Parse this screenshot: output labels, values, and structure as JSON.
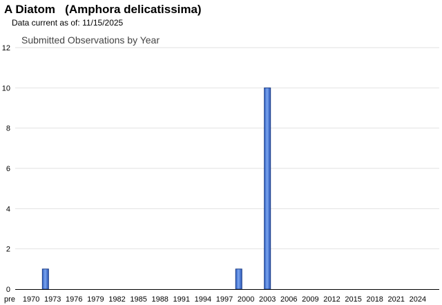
{
  "header": {
    "species_title": "A Diatom   (Amphora delicatissima)",
    "data_current_label": "Data current as of:",
    "data_current_date": "11/15/2025"
  },
  "colors": {
    "bar_fill": "#4a7bd8",
    "bar_stroke": "#1f3f86",
    "grid": "#e2e2e2"
  },
  "chart_data": {
    "type": "bar",
    "title": "Submitted Observations by Year",
    "xlabel": "",
    "ylabel": "",
    "ylim": [
      0,
      12
    ],
    "yticks": [
      0,
      2,
      4,
      6,
      8,
      10,
      12
    ],
    "grid": true,
    "x_tick_labels": [
      "pre",
      "1970",
      "1973",
      "1976",
      "1979",
      "1982",
      "1985",
      "1988",
      "1991",
      "1994",
      "1997",
      "2000",
      "2003",
      "2006",
      "2009",
      "2012",
      "2015",
      "2018",
      "2021",
      "2024"
    ],
    "bars": [
      {
        "category": "1972",
        "value": 1
      },
      {
        "category": "1999",
        "value": 1
      },
      {
        "category": "2003",
        "value": 10
      }
    ]
  }
}
